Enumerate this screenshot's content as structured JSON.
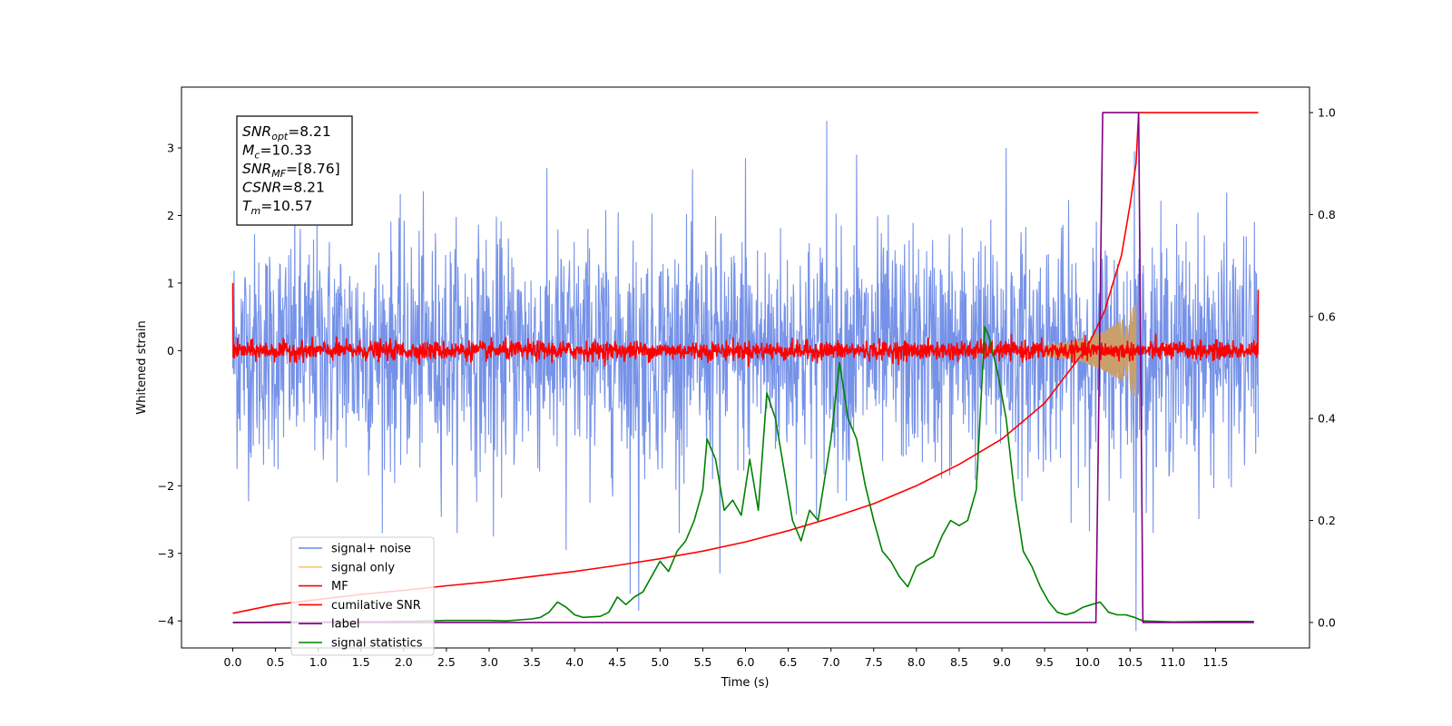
{
  "chart_data": {
    "type": "line",
    "xlabel": "Time (s)",
    "ylabel": "Whitened strain",
    "xlim": [
      -0.6,
      12.6
    ],
    "ylim_left": [
      -4.4,
      3.9
    ],
    "ylim_right": [
      -0.05,
      1.05
    ],
    "x_ticks": [
      "0.0",
      "0.5",
      "1.0",
      "1.5",
      "2.0",
      "2.5",
      "3.0",
      "3.5",
      "4.0",
      "4.5",
      "5.0",
      "5.5",
      "6.0",
      "6.5",
      "7.0",
      "7.5",
      "8.0",
      "8.5",
      "9.0",
      "9.5",
      "10.0",
      "10.5",
      "11.0",
      "11.5"
    ],
    "y_ticks_left": [
      "3",
      "2",
      "1",
      "0",
      "−2",
      "−3",
      "−4"
    ],
    "y_ticks_right": [
      "1.0",
      "0.8",
      "0.6",
      "0.4",
      "0.2",
      "0.0"
    ],
    "annotation": {
      "lines": [
        {
          "label": "SNR",
          "sub": "opt",
          "value": "=8.21"
        },
        {
          "label": "M",
          "sub": "c",
          "value": "=10.33"
        },
        {
          "label": "SNR",
          "sub": "MF",
          "value": "=[8.76]"
        },
        {
          "label": "CSNR",
          "sub": "",
          "value": "=8.21"
        },
        {
          "label": "T",
          "sub": "m",
          "value": "=10.57"
        }
      ]
    },
    "legend": {
      "placement": "lower-left",
      "entries": [
        {
          "name": "signal+ noise",
          "color": "#6a89e6"
        },
        {
          "name": "signal only",
          "color": "#f5c878"
        },
        {
          "name": "MF",
          "color": "#ff0000"
        },
        {
          "name": "cumilative SNR",
          "color": "#ff0000"
        },
        {
          "name": "label",
          "color": "#800080"
        },
        {
          "name": "signal statistics",
          "color": "#008000"
        }
      ]
    },
    "series": [
      {
        "name": "signal+ noise",
        "axis": "left",
        "color": "#6a89e6",
        "kind": "noise_band",
        "x_range": [
          0.0,
          12.0
        ],
        "amplitude_sd": 0.85,
        "spikes": [
          {
            "x": 6.95,
            "y": 3.4
          },
          {
            "x": 10.55,
            "y": 2.95
          },
          {
            "x": 7.3,
            "y": 2.9
          },
          {
            "x": 9.05,
            "y": 3.0
          },
          {
            "x": 6.0,
            "y": 2.85
          },
          {
            "x": 4.75,
            "y": -3.85
          },
          {
            "x": 4.65,
            "y": -3.6
          },
          {
            "x": 10.57,
            "y": -4.15
          },
          {
            "x": 5.7,
            "y": -3.3
          },
          {
            "x": 3.9,
            "y": -2.95
          },
          {
            "x": 3.05,
            "y": -2.75
          }
        ]
      },
      {
        "name": "signal only",
        "axis": "left",
        "color": "#f5c878",
        "kind": "chirp",
        "x_range": [
          9.5,
          10.57
        ],
        "envelope": [
          [
            9.5,
            0.08
          ],
          [
            9.9,
            0.15
          ],
          [
            10.2,
            0.3
          ],
          [
            10.4,
            0.45
          ],
          [
            10.57,
            0.7
          ]
        ]
      },
      {
        "name": "MF",
        "axis": "left",
        "color": "#ff0000",
        "kind": "noise_band",
        "x_range": [
          0.0,
          12.0
        ],
        "amplitude_sd": 0.07,
        "start_spike": {
          "x": 0.0,
          "y": 1.0
        },
        "end_spike": {
          "x": 12.0,
          "y": 0.9
        }
      },
      {
        "name": "cumilative SNR",
        "axis": "right",
        "color": "#ff0000",
        "x": [
          0.0,
          0.5,
          1.0,
          1.5,
          2.0,
          2.5,
          3.0,
          3.5,
          4.0,
          4.5,
          5.0,
          5.5,
          6.0,
          6.5,
          7.0,
          7.5,
          8.0,
          8.5,
          9.0,
          9.5,
          10.0,
          10.2,
          10.4,
          10.5,
          10.57,
          10.6,
          12.0
        ],
        "y": [
          0.018,
          0.035,
          0.045,
          0.055,
          0.063,
          0.072,
          0.08,
          0.09,
          0.1,
          0.112,
          0.125,
          0.14,
          0.158,
          0.18,
          0.205,
          0.233,
          0.268,
          0.31,
          0.36,
          0.43,
          0.54,
          0.61,
          0.72,
          0.82,
          0.9,
          1.0,
          1.0
        ]
      },
      {
        "name": "label",
        "axis": "right",
        "color": "#800080",
        "x": [
          0.0,
          10.1,
          10.18,
          10.6,
          10.65,
          11.95
        ],
        "y": [
          0.0,
          0.0,
          1.0,
          1.0,
          0.0,
          0.0
        ]
      },
      {
        "name": "signal statistics",
        "axis": "right",
        "color": "#008000",
        "x": [
          0.0,
          1.0,
          2.0,
          2.5,
          3.0,
          3.2,
          3.5,
          3.6,
          3.7,
          3.8,
          3.9,
          4.0,
          4.1,
          4.3,
          4.4,
          4.5,
          4.6,
          4.7,
          4.8,
          4.9,
          5.0,
          5.1,
          5.2,
          5.3,
          5.4,
          5.5,
          5.55,
          5.65,
          5.75,
          5.85,
          5.95,
          6.05,
          6.15,
          6.25,
          6.35,
          6.45,
          6.55,
          6.65,
          6.75,
          6.85,
          7.0,
          7.1,
          7.2,
          7.3,
          7.4,
          7.5,
          7.6,
          7.7,
          7.8,
          7.9,
          8.0,
          8.1,
          8.2,
          8.3,
          8.4,
          8.5,
          8.6,
          8.7,
          8.8,
          8.85,
          8.95,
          9.05,
          9.15,
          9.25,
          9.35,
          9.45,
          9.55,
          9.65,
          9.75,
          9.85,
          9.95,
          10.05,
          10.15,
          10.25,
          10.35,
          10.45,
          10.55,
          10.65,
          11.0,
          11.5,
          11.95
        ],
        "y": [
          0.0,
          0.001,
          0.002,
          0.004,
          0.004,
          0.003,
          0.007,
          0.01,
          0.02,
          0.04,
          0.03,
          0.015,
          0.01,
          0.012,
          0.02,
          0.05,
          0.035,
          0.05,
          0.06,
          0.09,
          0.12,
          0.1,
          0.14,
          0.16,
          0.2,
          0.26,
          0.36,
          0.32,
          0.22,
          0.24,
          0.21,
          0.32,
          0.22,
          0.45,
          0.4,
          0.3,
          0.2,
          0.16,
          0.22,
          0.2,
          0.36,
          0.51,
          0.4,
          0.36,
          0.27,
          0.2,
          0.14,
          0.12,
          0.09,
          0.07,
          0.11,
          0.12,
          0.13,
          0.17,
          0.2,
          0.19,
          0.2,
          0.26,
          0.58,
          0.56,
          0.49,
          0.4,
          0.25,
          0.14,
          0.11,
          0.07,
          0.04,
          0.02,
          0.015,
          0.02,
          0.03,
          0.035,
          0.04,
          0.02,
          0.015,
          0.015,
          0.01,
          0.003,
          0.001,
          0.002,
          0.002
        ]
      }
    ]
  }
}
